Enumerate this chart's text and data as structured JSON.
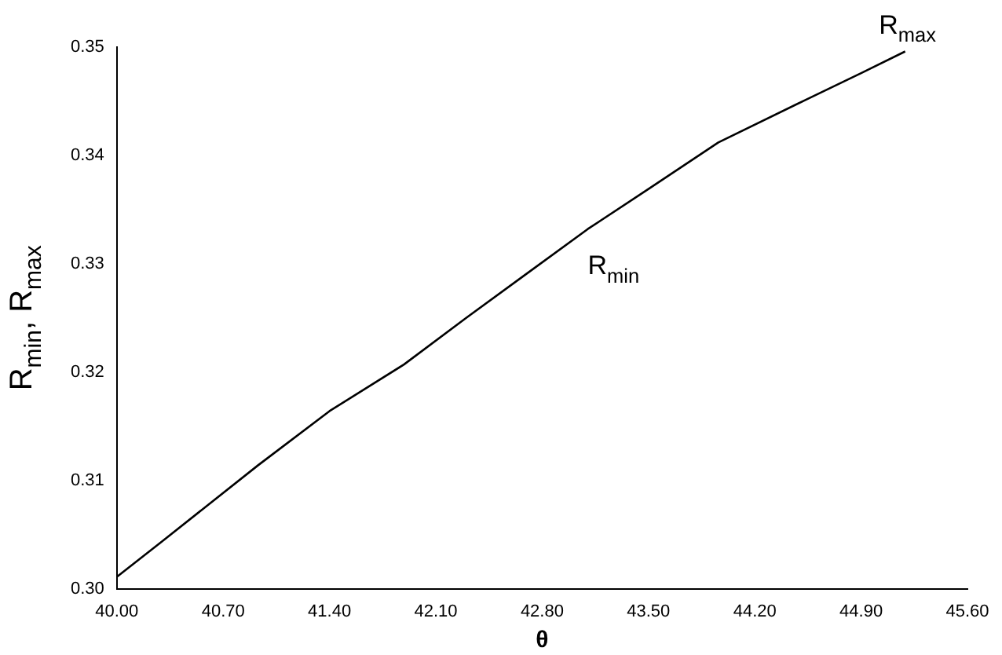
{
  "chart_data": {
    "type": "line",
    "xlabel": "θ",
    "ylabel": "R$_{min}$, R$_{max}$",
    "x": [
      40.0,
      40.3,
      40.93,
      41.4,
      41.89,
      42.3,
      42.69,
      43.1,
      43.5,
      43.96,
      44.53,
      44.9,
      45.19
    ],
    "series": [
      {
        "color": "#000000",
        "values": [
          0.3011,
          0.3044,
          0.3114,
          0.3164,
          0.3207,
          0.325,
          0.329,
          0.3332,
          0.3369,
          0.3412,
          0.3451,
          0.3476,
          0.3496
        ]
      }
    ],
    "xlim": [
      40.0,
      45.6
    ],
    "xticks": [
      {
        "value": 40.0,
        "label": "40.00"
      },
      {
        "value": 40.7,
        "label": "40.70"
      },
      {
        "value": 41.4,
        "label": "41.40"
      },
      {
        "value": 42.1,
        "label": "42.10"
      },
      {
        "value": 42.8,
        "label": "42.80"
      },
      {
        "value": 43.5,
        "label": "43.50"
      },
      {
        "value": 44.2,
        "label": "44.20"
      },
      {
        "value": 44.9,
        "label": "44.90"
      },
      {
        "value": 45.6,
        "label": "45.60"
      }
    ],
    "ylim": [
      0.3,
      0.35
    ],
    "yticks": [
      {
        "value": 0.3,
        "label": "0.30"
      },
      {
        "value": 0.31,
        "label": "0.31"
      },
      {
        "value": 0.32,
        "label": "0.32"
      },
      {
        "value": 0.33,
        "label": "0.33"
      },
      {
        "value": 0.34,
        "label": "0.34"
      },
      {
        "value": 0.35,
        "label": "0.35"
      }
    ],
    "annotations": [
      {
        "text": "R$_{min}$",
        "x": 43.1,
        "y": 0.3325
      },
      {
        "text": "R$_{max}$",
        "x": 45.1,
        "y": 0.3495
      }
    ],
    "grid": false,
    "legend": false,
    "marker": "none",
    "line_style": "solid"
  }
}
